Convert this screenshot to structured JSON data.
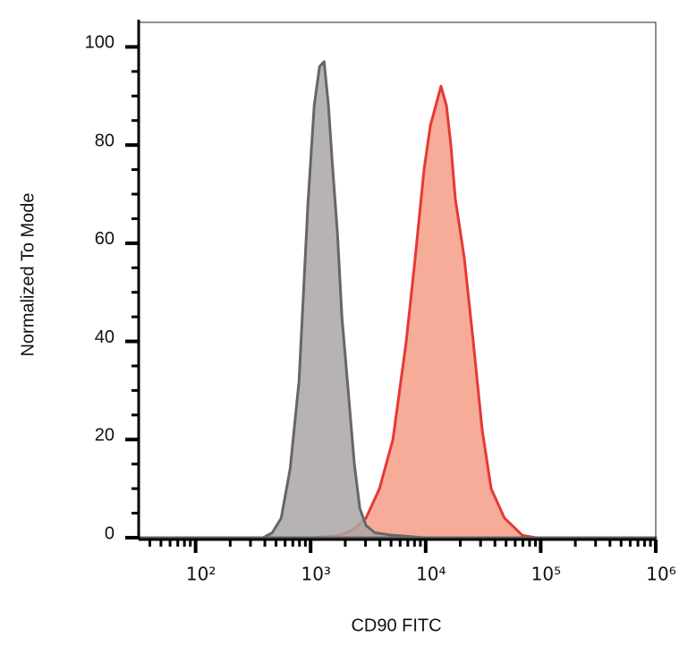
{
  "chart_data": {
    "type": "area",
    "x_label": "CD90 FITC",
    "y_label": "Normalized To Mode",
    "xscale": "log",
    "xlim": [
      32,
      1000000
    ],
    "xticks": [
      {
        "value": 100,
        "label": "10²"
      },
      {
        "value": 1000,
        "label": "10³"
      },
      {
        "value": 10000,
        "label": "10⁴"
      },
      {
        "value": 100000,
        "label": "10⁵"
      },
      {
        "value": 1000000,
        "label": "10⁶"
      }
    ],
    "ylim": [
      0,
      105
    ],
    "yticks": [
      0,
      20,
      40,
      60,
      80,
      100
    ],
    "series": [
      {
        "color": "#e53935",
        "fill": "#f7ab99",
        "x": [
          32,
          1036,
          1774,
          2317,
          3030,
          3966,
          5190,
          6780,
          8110,
          9680,
          10990,
          13610,
          15170,
          16570,
          18120,
          21670,
          25920,
          30990,
          37060,
          48440,
          69290,
          90570,
          1000000
        ],
        "values": [
          0,
          0,
          0.5,
          1.5,
          4,
          10,
          20,
          40,
          57,
          75,
          84,
          92,
          88,
          80,
          69,
          57,
          40,
          22,
          10,
          4,
          0.5,
          0,
          0
        ]
      },
      {
        "color": "#666666",
        "fill": "#aaa6a5",
        "x": [
          32,
          387,
          464,
          555,
          663,
          793,
          948,
          1074,
          1196,
          1309,
          1430,
          1536,
          1710,
          1870,
          2120,
          2400,
          2676,
          3030,
          3625,
          5190,
          9680,
          1000000
        ],
        "values": [
          0,
          0,
          1,
          4,
          14,
          32,
          68,
          88,
          96,
          97,
          88,
          77,
          62,
          45,
          30,
          15,
          6,
          2.5,
          1,
          0.5,
          0,
          0
        ]
      }
    ]
  }
}
